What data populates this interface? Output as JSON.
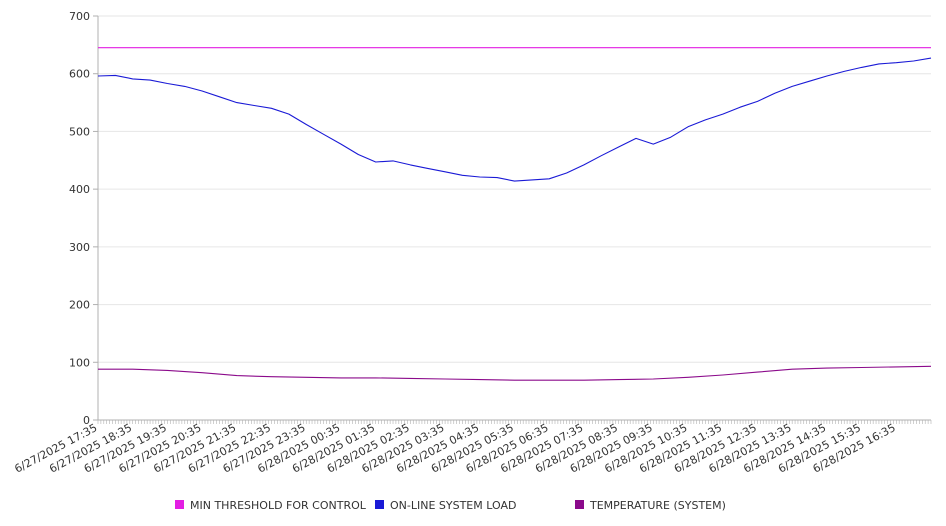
{
  "chart_data": {
    "type": "line",
    "title": "",
    "xlabel": "",
    "ylabel": "",
    "ylim": [
      0,
      700
    ],
    "yticks": [
      0,
      100,
      200,
      300,
      400,
      500,
      600,
      700
    ],
    "grid": true,
    "legend_position": "bottom",
    "x_start": "6/27/2025 17:35",
    "x_end": "6/28/2025 17:35",
    "x_tick_labels": [
      "6/27/2025 17:35",
      "6/27/2025 18:35",
      "6/27/2025 19:35",
      "6/27/2025 20:35",
      "6/27/2025 21:35",
      "6/27/2025 22:35",
      "6/27/2025 23:35",
      "6/28/2025 00:35",
      "6/28/2025 01:35",
      "6/28/2025 02:35",
      "6/28/2025 03:35",
      "6/28/2025 04:35",
      "6/28/2025 05:35",
      "6/28/2025 06:35",
      "6/28/2025 07:35",
      "6/28/2025 08:35",
      "6/28/2025 09:35",
      "6/28/2025 10:35",
      "6/28/2025 11:35",
      "6/28/2025 12:35",
      "6/28/2025 13:35",
      "6/28/2025 14:35",
      "6/28/2025 15:35",
      "6/28/2025 16:35"
    ],
    "series": [
      {
        "name": "MIN THRESHOLD FOR CONTROL",
        "color": "#e31ee3",
        "x": [
          "6/27/2025 17:35",
          "6/28/2025 17:35"
        ],
        "values": [
          645,
          645
        ]
      },
      {
        "name": "ON-LINE SYSTEM LOAD",
        "color": "#1a1ad6",
        "x": [
          "6/27/2025 17:35",
          "6/27/2025 18:05",
          "6/27/2025 18:35",
          "6/27/2025 19:05",
          "6/27/2025 19:35",
          "6/27/2025 20:05",
          "6/27/2025 20:35",
          "6/27/2025 21:05",
          "6/27/2025 21:35",
          "6/27/2025 22:05",
          "6/27/2025 22:35",
          "6/27/2025 23:05",
          "6/27/2025 23:35",
          "6/28/2025 00:05",
          "6/28/2025 00:35",
          "6/28/2025 01:05",
          "6/28/2025 01:35",
          "6/28/2025 02:05",
          "6/28/2025 02:35",
          "6/28/2025 03:05",
          "6/28/2025 03:35",
          "6/28/2025 04:05",
          "6/28/2025 04:35",
          "6/28/2025 05:05",
          "6/28/2025 05:35",
          "6/28/2025 06:05",
          "6/28/2025 06:35",
          "6/28/2025 07:05",
          "6/28/2025 07:35",
          "6/28/2025 08:05",
          "6/28/2025 08:35",
          "6/28/2025 09:05",
          "6/28/2025 09:35",
          "6/28/2025 10:05",
          "6/28/2025 10:35",
          "6/28/2025 11:05",
          "6/28/2025 11:35",
          "6/28/2025 12:05",
          "6/28/2025 12:35",
          "6/28/2025 13:05",
          "6/28/2025 13:35",
          "6/28/2025 14:05",
          "6/28/2025 14:35",
          "6/28/2025 15:05",
          "6/28/2025 15:35",
          "6/28/2025 16:05",
          "6/28/2025 16:35",
          "6/28/2025 17:05",
          "6/28/2025 17:35"
        ],
        "values": [
          596,
          597,
          591,
          589,
          583,
          578,
          570,
          560,
          550,
          545,
          540,
          530,
          512,
          495,
          478,
          460,
          447,
          449,
          442,
          436,
          430,
          424,
          421,
          420,
          414,
          416,
          418,
          428,
          442,
          458,
          473,
          488,
          478,
          490,
          508,
          520,
          530,
          542,
          552,
          566,
          578,
          587,
          596,
          604,
          611,
          617,
          619,
          622,
          627
        ]
      },
      {
        "name": "TEMPERATURE (SYSTEM)",
        "color": "#8b0a8b",
        "x": [
          "6/27/2025 17:35",
          "6/27/2025 18:35",
          "6/27/2025 19:35",
          "6/27/2025 20:35",
          "6/27/2025 21:35",
          "6/27/2025 22:35",
          "6/27/2025 23:35",
          "6/28/2025 00:35",
          "6/28/2025 01:35",
          "6/28/2025 02:35",
          "6/28/2025 03:35",
          "6/28/2025 04:35",
          "6/28/2025 05:35",
          "6/28/2025 06:35",
          "6/28/2025 07:35",
          "6/28/2025 08:35",
          "6/28/2025 09:35",
          "6/28/2025 10:35",
          "6/28/2025 11:35",
          "6/28/2025 12:35",
          "6/28/2025 13:35",
          "6/28/2025 14:35",
          "6/28/2025 15:35",
          "6/28/2025 16:35",
          "6/28/2025 17:35"
        ],
        "values": [
          88,
          88,
          86,
          82,
          77,
          75,
          74,
          73,
          73,
          72,
          71,
          70,
          69,
          69,
          69,
          70,
          71,
          74,
          78,
          83,
          88,
          90,
          91,
          92,
          93
        ]
      }
    ]
  }
}
